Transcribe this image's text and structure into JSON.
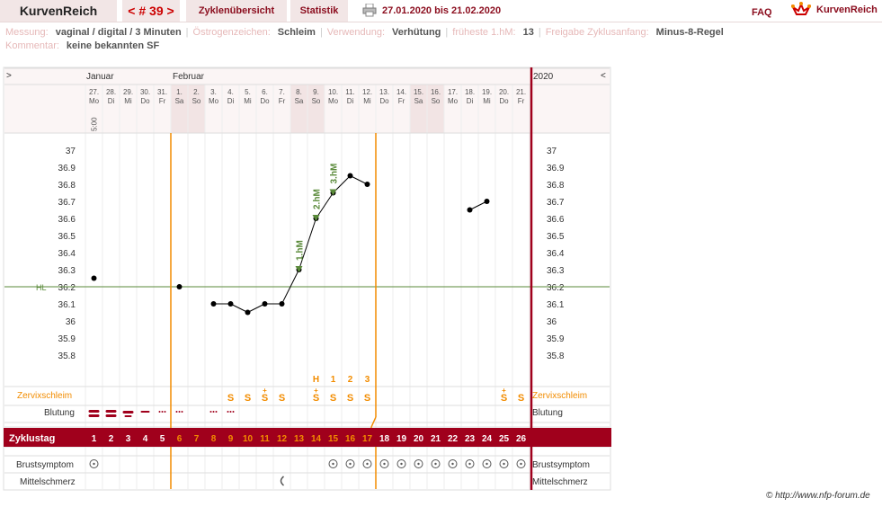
{
  "header": {
    "brand": "KurvenReich",
    "cycle_nav": "< # 39 >",
    "tab_overview": "Zyklenübersicht",
    "tab_stats": "Statistik",
    "date_range": "27.01.2020 bis 21.02.2020",
    "faq": "FAQ",
    "logo_text": "KurvenReich"
  },
  "meta": {
    "row1": [
      {
        "key": "Messung:",
        "value": "vaginal / digital / 3 Minuten"
      },
      {
        "key": "Östrogenzeichen:",
        "value": "Schleim"
      },
      {
        "key": "Verwendung:",
        "value": "Verhütung"
      },
      {
        "key": "früheste 1.hM:",
        "value": "13"
      },
      {
        "key": "Freigabe Zyklusanfang:",
        "value": "Minus-8-Regel"
      }
    ],
    "row2": [
      {
        "key": "Kommentar:",
        "value": "keine bekannten SF"
      }
    ]
  },
  "chart": {
    "nav_left": ">",
    "nav_right": "<",
    "year": "2020",
    "month_jan": "Januar",
    "month_feb": "Februar",
    "time_label": "5:00",
    "hl_label": "HL",
    "days": [
      {
        "d": "27.",
        "w": "Mo"
      },
      {
        "d": "28.",
        "w": "Di"
      },
      {
        "d": "29.",
        "w": "Mi"
      },
      {
        "d": "30.",
        "w": "Do"
      },
      {
        "d": "31.",
        "w": "Fr"
      },
      {
        "d": "1.",
        "w": "Sa"
      },
      {
        "d": "2.",
        "w": "So"
      },
      {
        "d": "3.",
        "w": "Mo"
      },
      {
        "d": "4.",
        "w": "Di"
      },
      {
        "d": "5.",
        "w": "Mi"
      },
      {
        "d": "6.",
        "w": "Do"
      },
      {
        "d": "7.",
        "w": "Fr"
      },
      {
        "d": "8.",
        "w": "Sa"
      },
      {
        "d": "9.",
        "w": "So"
      },
      {
        "d": "10.",
        "w": "Mo"
      },
      {
        "d": "11.",
        "w": "Di"
      },
      {
        "d": "12.",
        "w": "Mi"
      },
      {
        "d": "13.",
        "w": "Do"
      },
      {
        "d": "14.",
        "w": "Fr"
      },
      {
        "d": "15.",
        "w": "Sa"
      },
      {
        "d": "16.",
        "w": "So"
      },
      {
        "d": "17.",
        "w": "Mo"
      },
      {
        "d": "18.",
        "w": "Di"
      },
      {
        "d": "19.",
        "w": "Mi"
      },
      {
        "d": "20.",
        "w": "Do"
      },
      {
        "d": "21.",
        "w": "Fr"
      }
    ],
    "weekend_days": [
      6,
      7,
      13,
      14,
      20,
      21
    ],
    "y_ticks": [
      "37",
      "36.9",
      "36.8",
      "36.7",
      "36.6",
      "36.5",
      "36.4",
      "36.3",
      "36.2",
      "36.1",
      "36",
      "35.9",
      "35.8"
    ],
    "hl_value": 36.2,
    "temps": [
      36.25,
      null,
      null,
      null,
      null,
      36.2,
      null,
      36.1,
      36.1,
      36.05,
      36.1,
      36.1,
      36.3,
      36.6,
      36.75,
      36.85,
      36.8,
      null,
      null,
      null,
      null,
      null,
      36.65,
      36.7,
      null,
      null
    ],
    "markers": [
      {
        "day": 13,
        "label": "1.hM"
      },
      {
        "day": 14,
        "label": "2.hM"
      },
      {
        "day": 15,
        "label": "3.hM"
      }
    ],
    "count_labels": [
      {
        "day": 14,
        "text": "H"
      },
      {
        "day": 15,
        "text": "1"
      },
      {
        "day": 16,
        "text": "2"
      },
      {
        "day": 17,
        "text": "3"
      }
    ],
    "rows": {
      "zervix": "Zervixschleim",
      "blutung": "Blutung",
      "zyklustag": "Zyklustag",
      "brust": "Brustsymptom",
      "mittel": "Mittelschmerz"
    },
    "zervix_values": {
      "9": "S",
      "10": "S",
      "11": "S+",
      "12": "S",
      "14": "S+",
      "15": "S",
      "16": "S",
      "17": "S",
      "25": "S+",
      "26": "S"
    },
    "bleeding": {
      "1": "heavy",
      "2": "heavy",
      "3": "medium",
      "4": "light",
      "5": "spot",
      "6": "spot",
      "8": "spot",
      "9": "spot"
    },
    "cycle_days": [
      "1",
      "2",
      "3",
      "4",
      "5",
      "6",
      "7",
      "8",
      "9",
      "10",
      "11",
      "12",
      "13",
      "14",
      "15",
      "16",
      "17",
      "18",
      "19",
      "20",
      "21",
      "22",
      "23",
      "24",
      "25",
      "26"
    ],
    "brust_days": [
      1,
      15,
      16,
      17,
      18,
      19,
      20,
      21,
      22,
      23,
      24,
      25,
      26
    ],
    "mittel_day": 12,
    "colors": {
      "accent": "#a0001c",
      "orange": "#f28c00",
      "green": "#5a8a3a"
    }
  },
  "footer": {
    "copyright": "© http://www.nfp-forum.de"
  }
}
